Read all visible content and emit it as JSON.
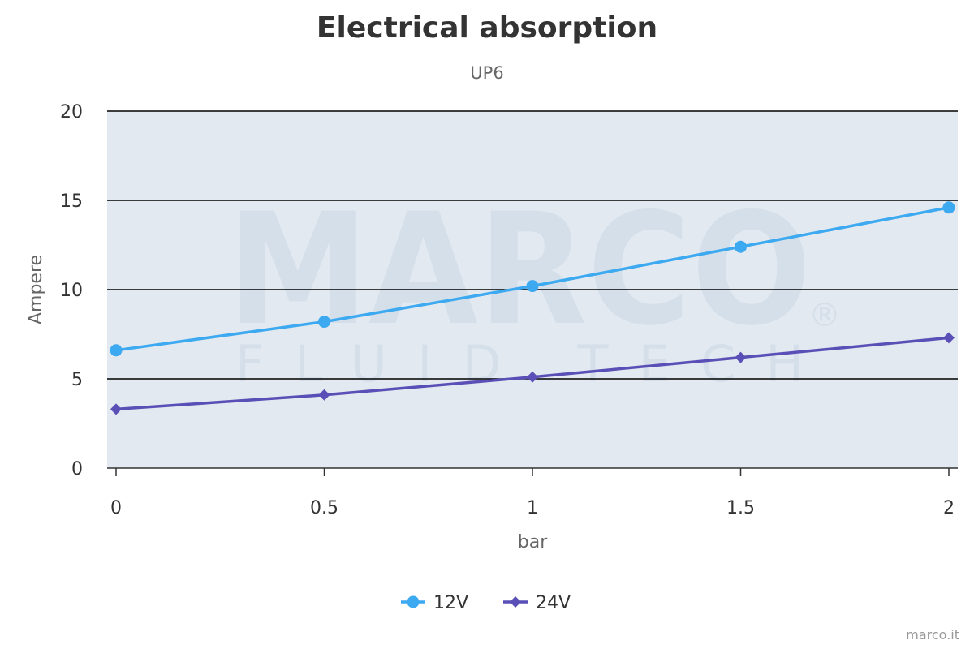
{
  "chart_data": {
    "type": "line",
    "title": "Electrical absorption",
    "subtitle": "UP6",
    "xlabel": "bar",
    "ylabel": "Ampere",
    "x": [
      0,
      0.5,
      1,
      1.5,
      2
    ],
    "xlim": [
      0,
      2
    ],
    "ylim": [
      0,
      20
    ],
    "xticks": [
      "0",
      "0.5",
      "1",
      "1.5",
      "2"
    ],
    "yticks": [
      "0",
      "5",
      "10",
      "15",
      "20"
    ],
    "grid": true,
    "legend": "bottom-center",
    "series": [
      {
        "name": "12V",
        "values": [
          6.6,
          8.2,
          10.2,
          12.4,
          14.6
        ],
        "color": "#3DA9F0",
        "marker": "circle"
      },
      {
        "name": "24V",
        "values": [
          3.3,
          4.1,
          5.1,
          6.2,
          7.3
        ],
        "color": "#5A4FB6",
        "marker": "diamond"
      }
    ]
  },
  "watermark": {
    "line1": "MARCO",
    "line2": "FLUID TECH",
    "mark": "®"
  },
  "credits": "marco.it"
}
